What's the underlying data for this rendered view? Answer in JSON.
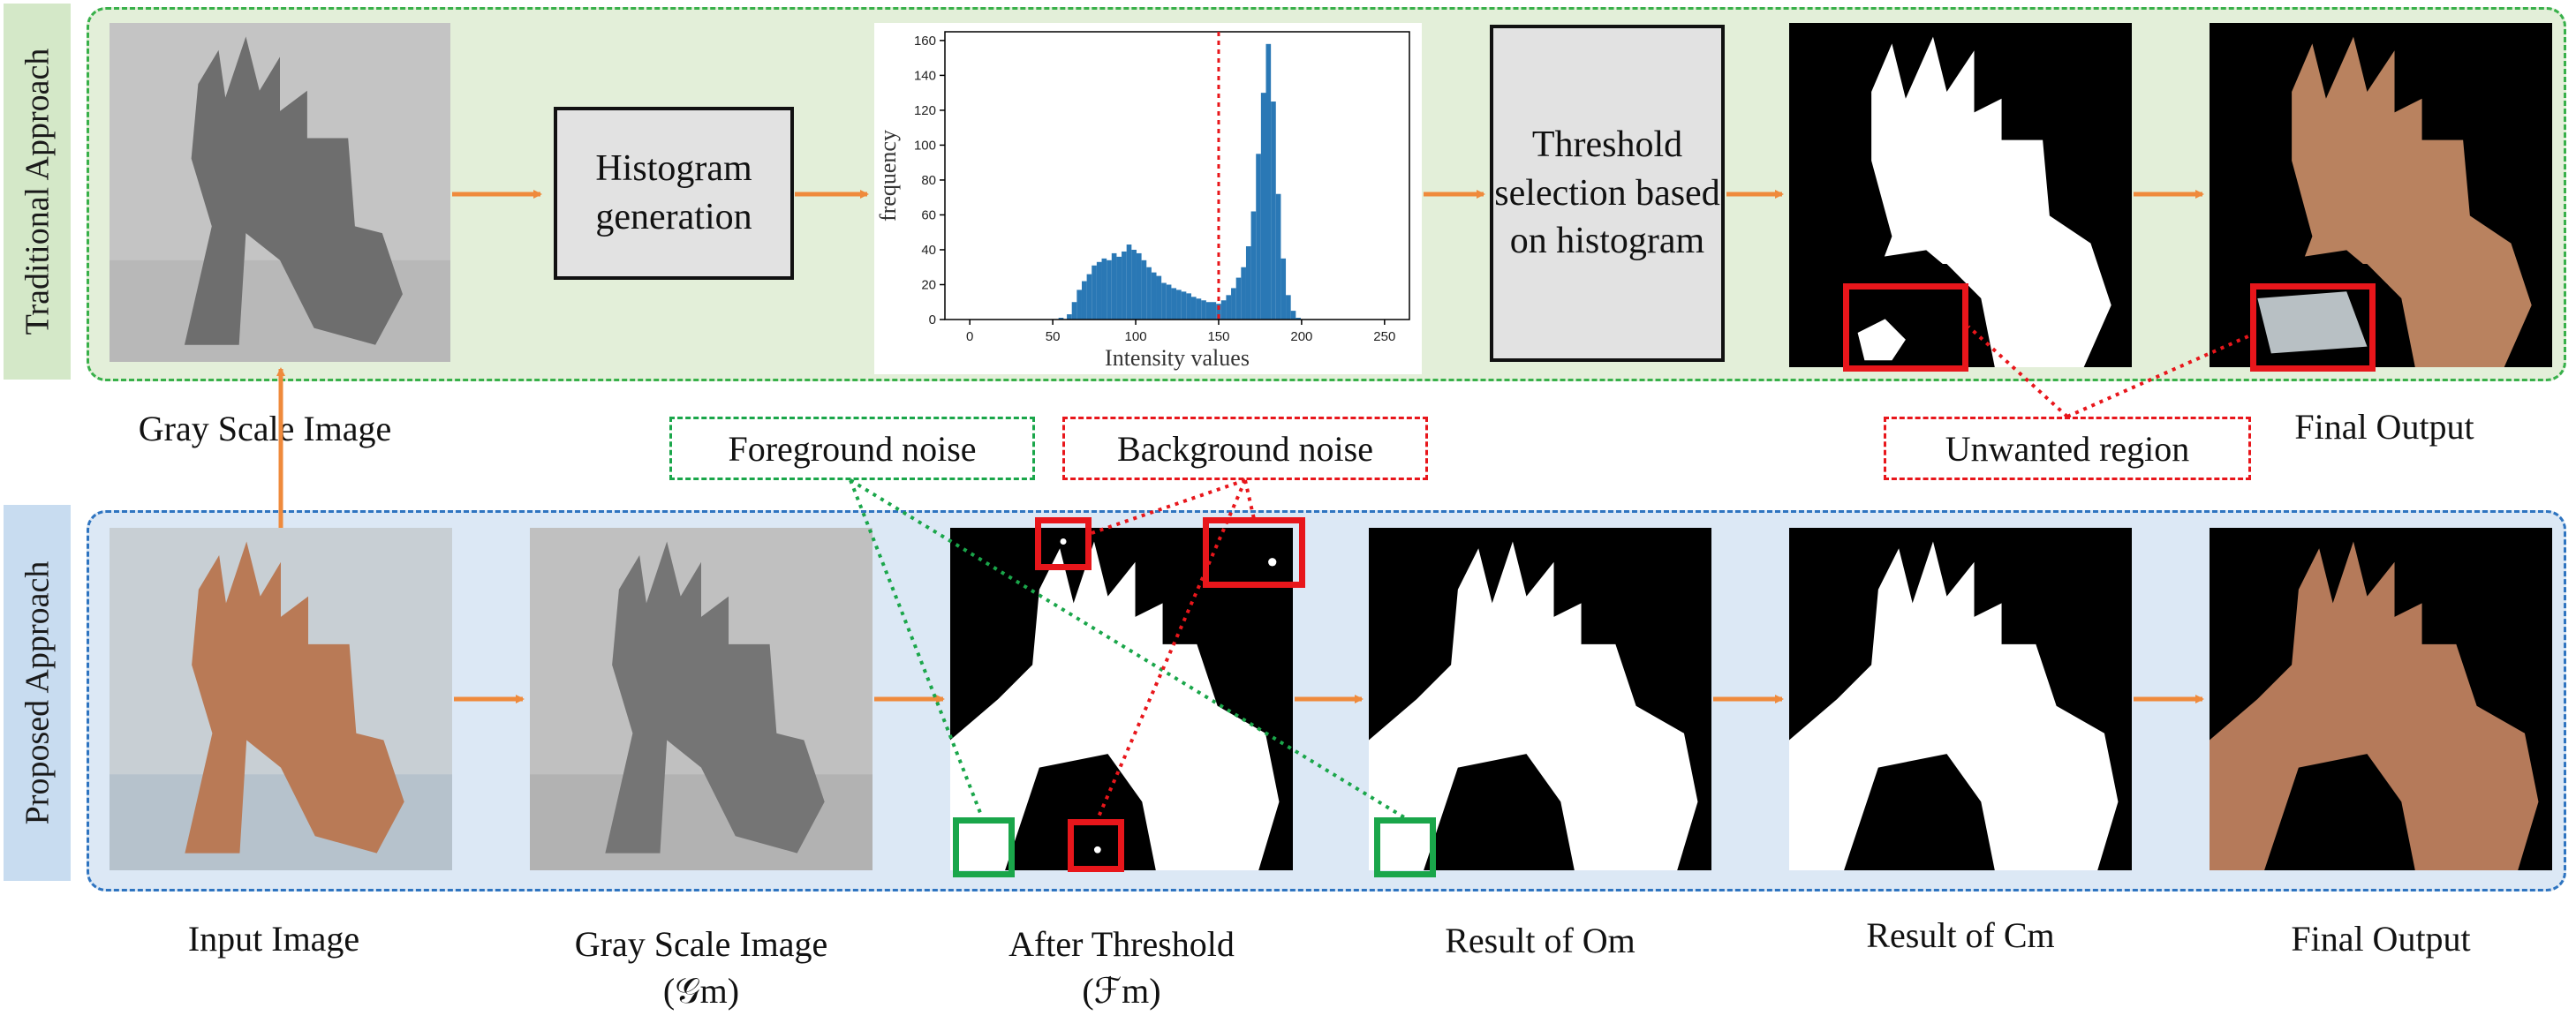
{
  "colors": {
    "traditional_bg": "#e3efd9",
    "traditional_border": "#38b04a",
    "proposed_bg": "#dce8f5",
    "proposed_border": "#2e74c0",
    "arrow": "#ef8a3c",
    "red": "#e8161b",
    "green": "#1aa64a",
    "hist_bar": "#2a78b5",
    "threshold_line": "#e8161b"
  },
  "traditional": {
    "label": "Traditional Approach",
    "histogram_box": "Histogram generation",
    "threshold_box": "Threshold selection based on histogram",
    "caption_gray": "Gray Scale Image",
    "caption_final": "Final Output",
    "unwanted_region": "Unwanted region"
  },
  "proposed": {
    "label": "Proposed Approach",
    "foreground_noise": "Foreground noise",
    "background_noise": "Background noise",
    "captions": [
      {
        "line1": "Input Image",
        "line2": ""
      },
      {
        "line1": "Gray Scale Image",
        "line2": "(𝒢m)"
      },
      {
        "line1": "After Threshold",
        "line2": "(ℱm)"
      },
      {
        "line1": "Result of Om",
        "line2": ""
      },
      {
        "line1": "Result of Cm",
        "line2": ""
      },
      {
        "line1": "Final Output",
        "line2": ""
      }
    ]
  },
  "chart_data": {
    "type": "bar",
    "xlabel": "Intensity values",
    "ylabel": "frequency",
    "xlim": [
      -15,
      265
    ],
    "ylim": [
      0,
      165
    ],
    "xticks": [
      "0",
      "50",
      "100",
      "150",
      "200",
      "250"
    ],
    "yticks": [
      "0",
      "20",
      "40",
      "60",
      "80",
      "100",
      "120",
      "140",
      "160"
    ],
    "threshold": 150,
    "bins": [
      {
        "x": 55,
        "y": 1
      },
      {
        "x": 60,
        "y": 3
      },
      {
        "x": 63,
        "y": 10
      },
      {
        "x": 66,
        "y": 17
      },
      {
        "x": 69,
        "y": 22
      },
      {
        "x": 72,
        "y": 26
      },
      {
        "x": 75,
        "y": 31
      },
      {
        "x": 78,
        "y": 33
      },
      {
        "x": 81,
        "y": 35
      },
      {
        "x": 84,
        "y": 34
      },
      {
        "x": 87,
        "y": 38
      },
      {
        "x": 90,
        "y": 36
      },
      {
        "x": 93,
        "y": 39
      },
      {
        "x": 96,
        "y": 43
      },
      {
        "x": 99,
        "y": 40
      },
      {
        "x": 102,
        "y": 38
      },
      {
        "x": 105,
        "y": 34
      },
      {
        "x": 108,
        "y": 30
      },
      {
        "x": 111,
        "y": 27
      },
      {
        "x": 114,
        "y": 25
      },
      {
        "x": 117,
        "y": 21
      },
      {
        "x": 120,
        "y": 20
      },
      {
        "x": 123,
        "y": 18
      },
      {
        "x": 126,
        "y": 17
      },
      {
        "x": 129,
        "y": 16
      },
      {
        "x": 132,
        "y": 15
      },
      {
        "x": 135,
        "y": 13
      },
      {
        "x": 138,
        "y": 12
      },
      {
        "x": 141,
        "y": 11
      },
      {
        "x": 144,
        "y": 10
      },
      {
        "x": 147,
        "y": 10
      },
      {
        "x": 150,
        "y": 9
      },
      {
        "x": 153,
        "y": 11
      },
      {
        "x": 156,
        "y": 14
      },
      {
        "x": 159,
        "y": 18
      },
      {
        "x": 162,
        "y": 24
      },
      {
        "x": 165,
        "y": 30
      },
      {
        "x": 168,
        "y": 42
      },
      {
        "x": 171,
        "y": 62
      },
      {
        "x": 174,
        "y": 95
      },
      {
        "x": 177,
        "y": 130
      },
      {
        "x": 180,
        "y": 158
      },
      {
        "x": 183,
        "y": 125
      },
      {
        "x": 186,
        "y": 72
      },
      {
        "x": 189,
        "y": 35
      },
      {
        "x": 192,
        "y": 14
      },
      {
        "x": 195,
        "y": 5
      },
      {
        "x": 198,
        "y": 1
      }
    ]
  }
}
